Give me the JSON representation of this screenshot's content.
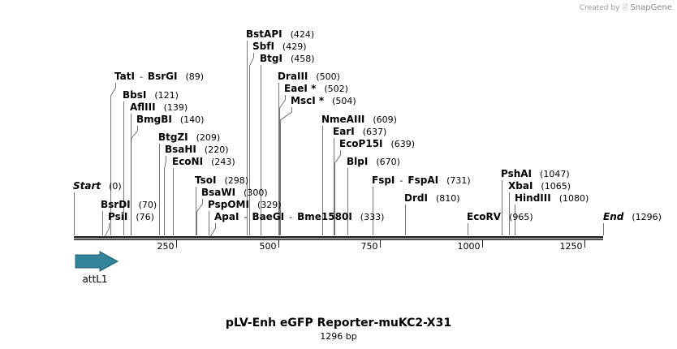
{
  "credit": {
    "prefix": "Created by",
    "brand": "SnapGene"
  },
  "plasmid": {
    "name": "pLV-Enh eGFP Reporter-muKC2-X31",
    "length_label": "1296 bp"
  },
  "track": {
    "start": 0,
    "end": 1296,
    "ticks": [
      250,
      500,
      750,
      1000,
      1250
    ]
  },
  "feature": {
    "name": "attL1",
    "color": "#31849b"
  },
  "sites": [
    {
      "label": "BstAPI",
      "pos": "(424)",
      "n": 424
    },
    {
      "label": "SbfI",
      "pos": "(429)",
      "n": 429
    },
    {
      "label": "BtgI",
      "pos": "(458)",
      "n": 458
    },
    {
      "label": "TatI",
      "sep": "-",
      "label2": "BsrGI",
      "pos": "(89)",
      "n": 89
    },
    {
      "label": "DraIII",
      "pos": "(500)",
      "n": 500
    },
    {
      "label": "EaeI *",
      "pos": "(502)",
      "n": 502
    },
    {
      "label": "BbsI",
      "pos": "(121)",
      "n": 121
    },
    {
      "label": "MscI *",
      "pos": "(504)",
      "n": 504
    },
    {
      "label": "AflIII",
      "pos": "(139)",
      "n": 139
    },
    {
      "label": "BmgBI",
      "pos": "(140)",
      "n": 140
    },
    {
      "label": "NmeAIII",
      "pos": "(609)",
      "n": 609
    },
    {
      "label": "EarI",
      "pos": "(637)",
      "n": 637
    },
    {
      "label": "BtgZI",
      "pos": "(209)",
      "n": 209
    },
    {
      "label": "BsaHI",
      "pos": "(220)",
      "n": 220
    },
    {
      "label": "EcoP15I",
      "pos": "(639)",
      "n": 639
    },
    {
      "label": "EcoNI",
      "pos": "(243)",
      "n": 243
    },
    {
      "label": "BlpI",
      "pos": "(670)",
      "n": 670
    },
    {
      "label": "TsoI",
      "pos": "(298)",
      "n": 298
    },
    {
      "label": "FspI",
      "sep": "-",
      "label2": "FspAI",
      "pos": "(731)",
      "n": 731
    },
    {
      "label": "PshAI",
      "pos": "(1047)",
      "n": 1047
    },
    {
      "label": "Start",
      "pos": "(0)",
      "n": 0,
      "italic": true
    },
    {
      "label": "XbaI",
      "pos": "(1065)",
      "n": 1065
    },
    {
      "label": "BsaWI",
      "pos": "(300)",
      "n": 300
    },
    {
      "label": "DrdI",
      "pos": "(810)",
      "n": 810
    },
    {
      "label": "HindIII",
      "pos": "(1080)",
      "n": 1080
    },
    {
      "label": "PspOMI",
      "pos": "(329)",
      "n": 329
    },
    {
      "label": "BsrDI",
      "pos": "(70)",
      "n": 70
    },
    {
      "label": "PsiI",
      "pos": "(76)",
      "n": 76
    },
    {
      "label": "ApaI",
      "sep": "-",
      "label2": "BaeGI",
      "sep2": "-",
      "label3": "Bme1580I",
      "pos": "(333)",
      "n": 333
    },
    {
      "label": "EcoRV",
      "pos": "(965)",
      "n": 965
    },
    {
      "label": "End",
      "pos": "(1296)",
      "n": 1296,
      "italic": true
    }
  ]
}
